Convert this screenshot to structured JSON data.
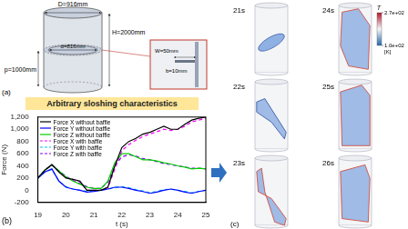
{
  "chart_data": {
    "type": "line",
    "xlabel": "t (s)",
    "ylabel": "Force (N)",
    "x": [
      19,
      19.25,
      19.5,
      19.75,
      20,
      20.25,
      20.5,
      20.75,
      21,
      21.25,
      21.5,
      21.75,
      22,
      22.25,
      22.5,
      22.75,
      23,
      23.25,
      23.5,
      23.75,
      24,
      24.25,
      24.5,
      24.75,
      25
    ],
    "xlim": [
      19,
      25
    ],
    "xticks": [
      19,
      20,
      21,
      22,
      23,
      24,
      25
    ],
    "ylim": [
      -200,
      1200
    ],
    "yticks": [
      -200,
      0,
      200,
      400,
      600,
      800,
      1000,
      1200
    ],
    "grid": false,
    "legend": "upper left",
    "series": [
      {
        "name": "Force X without baffle",
        "color": "#000000",
        "line_style": "solid",
        "values": [
          200,
          330,
          420,
          300,
          200,
          180,
          150,
          0,
          0,
          0,
          50,
          400,
          700,
          800,
          850,
          920,
          950,
          1000,
          1050,
          1000,
          1000,
          1080,
          1150,
          1180,
          1200
        ]
      },
      {
        "name": "Force Y without baffle",
        "color": "#0000ff",
        "line_style": "solid",
        "values": [
          200,
          300,
          350,
          150,
          50,
          20,
          0,
          -30,
          -20,
          0,
          20,
          50,
          50,
          30,
          0,
          -20,
          -50,
          -30,
          0,
          20,
          0,
          -30,
          -50,
          -20,
          0
        ]
      },
      {
        "name": "Force Z without baffle",
        "color": "#00cc00",
        "line_style": "solid",
        "values": [
          200,
          330,
          420,
          320,
          220,
          150,
          100,
          50,
          30,
          30,
          150,
          450,
          600,
          600,
          550,
          500,
          500,
          480,
          450,
          430,
          400,
          380,
          350,
          360,
          350
        ]
      },
      {
        "name": "Force X with baffle",
        "color": "#ff00ff",
        "line_style": "dashed",
        "values": [
          200,
          330,
          420,
          310,
          210,
          180,
          140,
          0,
          0,
          0,
          40,
          350,
          650,
          750,
          820,
          880,
          920,
          960,
          1000,
          980,
          1000,
          1050,
          1120,
          1150,
          1180
        ]
      },
      {
        "name": "Force Y with baffle",
        "color": "#00bfff",
        "line_style": "dashed",
        "values": [
          200,
          300,
          340,
          150,
          60,
          20,
          0,
          -20,
          -10,
          0,
          20,
          40,
          60,
          40,
          10,
          -10,
          -40,
          -20,
          10,
          20,
          0,
          -20,
          -40,
          -20,
          0
        ]
      },
      {
        "name": "Force Z with baffle",
        "color": "#8b00ff",
        "line_style": "dashed",
        "values": [
          200,
          330,
          410,
          320,
          230,
          160,
          110,
          60,
          30,
          30,
          130,
          400,
          550,
          580,
          560,
          520,
          500,
          470,
          440,
          420,
          400,
          380,
          360,
          360,
          350
        ]
      }
    ]
  },
  "panel_a": {
    "label": "(a)",
    "D": "D=916mm",
    "d": "d=816mm",
    "H": "H=2000mm",
    "p": "p=1000mm",
    "W": "W=50mm",
    "b": "b=10mm"
  },
  "panel_b": {
    "label": "(b)",
    "banner": "Arbitrary sloshing characteristics"
  },
  "panel_c": {
    "label": "(c)",
    "snapshots": [
      "21s",
      "22s",
      "23s",
      "24s",
      "25s",
      "26s"
    ],
    "colorbar": {
      "title": "T",
      "unit": "[K]",
      "range": [
        100,
        270
      ],
      "ticks": [
        {
          "value": 270,
          "label": "2.7e+02"
        },
        {
          "value": 100,
          "label": "1.0e+02"
        }
      ]
    }
  }
}
